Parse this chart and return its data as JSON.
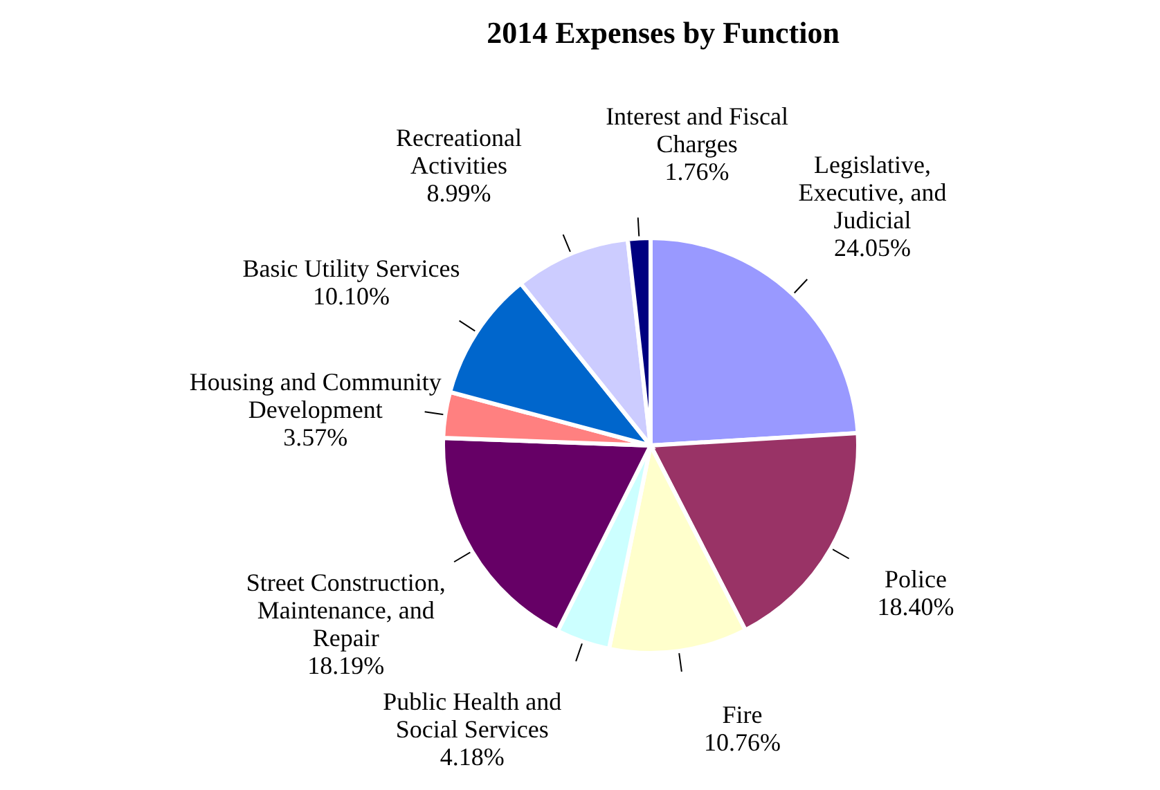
{
  "chart_data": {
    "type": "pie",
    "title": "2014 Expenses by Function",
    "categories": [
      "Legislative, Executive, and Judicial",
      "Police",
      "Fire",
      "Public Health and Social Services",
      "Street Construction, Maintenance, and Repair",
      "Housing and Community Development",
      "Basic Utility Services",
      "Recreational Activities",
      "Interest and Fiscal Charges"
    ],
    "values": [
      24.05,
      18.4,
      10.76,
      4.18,
      18.19,
      3.57,
      10.1,
      8.99,
      1.76
    ],
    "value_labels": [
      "24.05%",
      "18.40%",
      "10.76%",
      "4.18%",
      "18.19%",
      "3.57%",
      "10.10%",
      "8.99%",
      "1.76%"
    ],
    "colors": [
      "#9999ff",
      "#993366",
      "#ffffcc",
      "#ccffff",
      "#660066",
      "#ff8080",
      "#0066cc",
      "#ccccff",
      "#000080"
    ],
    "legend": false
  }
}
